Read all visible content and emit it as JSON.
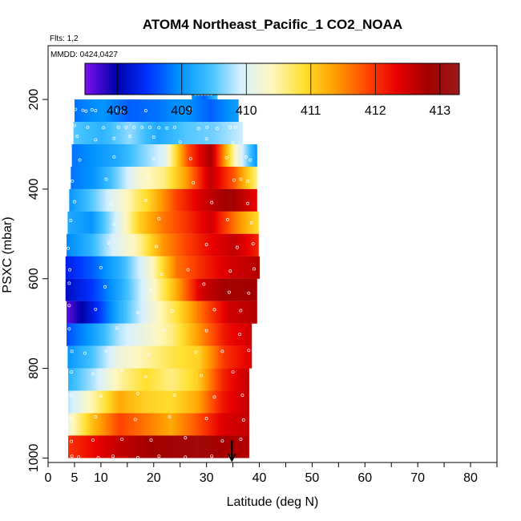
{
  "chart_data": {
    "type": "heatmap",
    "title": "ATOM4 Northeast_Pacific_1 CO2_NOAA",
    "flights_note": "Flts: 1,2",
    "dates_note": "MMDD: 0424,0427",
    "xlabel": "Latitude (deg N)",
    "ylabel": "PSXC (mbar)",
    "xlim": [
      0,
      85
    ],
    "ylim": [
      1010,
      80
    ],
    "x_ticks": [
      0,
      5,
      10,
      20,
      30,
      40,
      50,
      60,
      70,
      80
    ],
    "y_ticks": [
      200,
      400,
      600,
      800,
      1000
    ],
    "colorbar": {
      "range": [
        407.5,
        413.3
      ],
      "ticks": [
        408,
        409,
        410,
        411,
        412,
        413
      ],
      "stops": [
        "#7b10ee",
        "#0000aa",
        "#0030ff",
        "#0090ff",
        "#40c0ff",
        "#d6f0ff",
        "#fff7c0",
        "#ffe030",
        "#ffa000",
        "#ff4a00",
        "#e80000",
        "#a30000",
        "#9a1a1a"
      ]
    },
    "bin_pressure_mbar": 50,
    "bands": [
      {
        "p": 187,
        "lat": [
          27.2,
          32.0
        ],
        "v": [
          409.0,
          408.7,
          409.4
        ]
      },
      {
        "p": 225,
        "lat": [
          5.0,
          36.0
        ],
        "v": [
          408.8,
          409.0,
          408.7,
          408.8,
          409.0,
          408.7,
          409.1
        ]
      },
      {
        "p": 275,
        "lat": [
          4.8,
          36.8
        ],
        "v": [
          409.5,
          409.3,
          409.7,
          409.2,
          409.5,
          409.6,
          409.9
        ]
      },
      {
        "p": 325,
        "lat": [
          4.5,
          39.5
        ],
        "v": [
          408.8,
          409.0,
          409.2,
          409.6,
          410.0,
          411.8,
          412.8,
          410.5,
          409.0
        ]
      },
      {
        "p": 375,
        "lat": [
          4.3,
          39.5
        ],
        "v": [
          408.8,
          409.0,
          409.6,
          410.3,
          410.6,
          411.4,
          412.6,
          411.8,
          410.6
        ]
      },
      {
        "p": 425,
        "lat": [
          4.0,
          39.5
        ],
        "v": [
          409.0,
          409.6,
          410.3,
          411.0,
          411.9,
          412.5,
          412.9,
          412.3
        ]
      },
      {
        "p": 475,
        "lat": [
          3.7,
          39.8
        ],
        "v": [
          409.2,
          409.0,
          409.9,
          411.0,
          411.6,
          412.0,
          412.5,
          411.6,
          410.9
        ]
      },
      {
        "p": 525,
        "lat": [
          3.5,
          39.8
        ],
        "v": [
          408.9,
          409.3,
          410.0,
          410.5,
          411.4,
          411.9,
          412.3,
          412.6,
          412.1
        ]
      },
      {
        "p": 575,
        "lat": [
          3.3,
          40.0
        ],
        "v": [
          408.3,
          408.7,
          409.3,
          410.2,
          411.6,
          412.1,
          412.5,
          412.7
        ]
      },
      {
        "p": 625,
        "lat": [
          3.3,
          39.5
        ],
        "v": [
          408.1,
          408.5,
          409.2,
          410.1,
          411.2,
          412.5,
          412.9,
          412.8
        ]
      },
      {
        "p": 675,
        "lat": [
          3.5,
          39.5
        ],
        "v": [
          407.6,
          408.3,
          409.3,
          410.1,
          410.8,
          411.7,
          412.5,
          412.7
        ]
      },
      {
        "p": 725,
        "lat": [
          3.5,
          38.5
        ],
        "v": [
          408.6,
          409.1,
          409.8,
          410.2,
          410.6,
          411.4,
          412.2,
          412.5
        ]
      },
      {
        "p": 775,
        "lat": [
          3.7,
          38.5
        ],
        "v": [
          409.0,
          409.5,
          410.2,
          410.5,
          410.8,
          411.0,
          412.0,
          412.4
        ]
      },
      {
        "p": 825,
        "lat": [
          3.8,
          38.0
        ],
        "v": [
          409.3,
          409.8,
          410.5,
          410.9,
          410.6,
          411.0,
          412.1,
          412.6
        ]
      },
      {
        "p": 875,
        "lat": [
          3.8,
          38.0
        ],
        "v": [
          409.8,
          410.5,
          411.3,
          411.0,
          410.9,
          411.3,
          412.2,
          412.6
        ]
      },
      {
        "p": 925,
        "lat": [
          3.8,
          38.0
        ],
        "v": [
          410.2,
          411.2,
          411.9,
          411.6,
          411.3,
          411.8,
          412.4,
          412.6
        ]
      },
      {
        "p": 975,
        "lat": [
          3.8,
          38.0
        ],
        "v": [
          412.0,
          412.3,
          412.6,
          412.8,
          412.9,
          413.0,
          412.8,
          412.7
        ]
      }
    ],
    "marker": {
      "lat": 34.8,
      "p": 1000
    },
    "sample_points": [
      [
        27.9,
        188
      ],
      [
        28.5,
        188
      ],
      [
        29.1,
        188
      ],
      [
        29.7,
        188
      ],
      [
        30.3,
        188
      ],
      [
        30.9,
        188
      ],
      [
        5.2,
        222
      ],
      [
        6.6,
        224
      ],
      [
        7.2,
        226
      ],
      [
        8.3,
        223
      ],
      [
        9.0,
        225
      ],
      [
        12.8,
        224
      ],
      [
        14.0,
        227
      ],
      [
        18.5,
        225
      ],
      [
        27.0,
        222
      ],
      [
        5.0,
        258
      ],
      [
        7.5,
        262
      ],
      [
        10.5,
        263
      ],
      [
        13.3,
        262
      ],
      [
        14.8,
        262
      ],
      [
        16.3,
        262
      ],
      [
        17.8,
        262
      ],
      [
        19.3,
        262
      ],
      [
        21.0,
        263
      ],
      [
        22.5,
        264
      ],
      [
        24.0,
        262
      ],
      [
        28.5,
        265
      ],
      [
        30.1,
        262
      ],
      [
        32.0,
        265
      ],
      [
        34.5,
        262
      ],
      [
        35.5,
        262
      ],
      [
        5.5,
        282
      ],
      [
        9.0,
        290
      ],
      [
        12.5,
        287
      ],
      [
        15.5,
        282
      ],
      [
        20.0,
        284
      ],
      [
        25.0,
        295
      ],
      [
        30.0,
        288
      ],
      [
        35.0,
        296
      ],
      [
        6.0,
        335
      ],
      [
        12.5,
        328
      ],
      [
        20.0,
        333
      ],
      [
        27.0,
        332
      ],
      [
        33.8,
        330
      ],
      [
        37.5,
        328
      ],
      [
        38.3,
        335
      ],
      [
        4.6,
        382
      ],
      [
        11.0,
        378
      ],
      [
        19.0,
        377
      ],
      [
        27.5,
        386
      ],
      [
        35.2,
        380
      ],
      [
        36.5,
        378
      ],
      [
        37.8,
        382
      ],
      [
        5.0,
        428
      ],
      [
        12.0,
        434
      ],
      [
        18.5,
        425
      ],
      [
        31.0,
        430
      ],
      [
        37.8,
        432
      ],
      [
        4.3,
        470
      ],
      [
        12.5,
        478
      ],
      [
        21.0,
        466
      ],
      [
        34.0,
        468
      ],
      [
        38.5,
        475
      ],
      [
        3.8,
        532
      ],
      [
        11.5,
        520
      ],
      [
        20.5,
        528
      ],
      [
        30.0,
        524
      ],
      [
        35.8,
        530
      ],
      [
        38.8,
        522
      ],
      [
        4.1,
        580
      ],
      [
        10.0,
        575
      ],
      [
        21.5,
        590
      ],
      [
        26.5,
        580
      ],
      [
        34.5,
        583
      ],
      [
        39.0,
        578
      ],
      [
        4.0,
        610
      ],
      [
        10.8,
        618
      ],
      [
        19.5,
        625
      ],
      [
        29.5,
        612
      ],
      [
        34.3,
        630
      ],
      [
        38.0,
        632
      ],
      [
        4.0,
        660
      ],
      [
        9.0,
        668
      ],
      [
        17.0,
        676
      ],
      [
        23.5,
        672
      ],
      [
        31.5,
        669
      ],
      [
        36.5,
        671
      ],
      [
        4.0,
        712
      ],
      [
        13.0,
        710
      ],
      [
        22.0,
        716
      ],
      [
        30.0,
        716
      ],
      [
        36.3,
        724
      ],
      [
        4.5,
        762
      ],
      [
        7.0,
        766
      ],
      [
        11.0,
        762
      ],
      [
        19.0,
        770
      ],
      [
        28.0,
        764
      ],
      [
        33.0,
        762
      ],
      [
        38.0,
        760
      ],
      [
        4.4,
        808
      ],
      [
        8.5,
        812
      ],
      [
        14.0,
        805
      ],
      [
        18.5,
        818
      ],
      [
        29.0,
        816
      ],
      [
        35.0,
        808
      ],
      [
        4.3,
        860
      ],
      [
        10.0,
        862
      ],
      [
        17.0,
        856
      ],
      [
        24.0,
        860
      ],
      [
        31.5,
        864
      ],
      [
        36.8,
        860
      ],
      [
        4.3,
        912
      ],
      [
        9.0,
        908
      ],
      [
        16.5,
        914
      ],
      [
        23.0,
        908
      ],
      [
        30.0,
        912
      ],
      [
        37.0,
        915
      ],
      [
        4.4,
        963
      ],
      [
        8.5,
        960
      ],
      [
        14.0,
        958
      ],
      [
        19.5,
        960
      ],
      [
        26.0,
        955
      ],
      [
        33.0,
        962
      ],
      [
        36.5,
        958
      ],
      [
        4.5,
        996
      ],
      [
        5.8,
        998
      ],
      [
        9.5,
        999
      ],
      [
        12.3,
        996
      ],
      [
        17.0,
        999
      ],
      [
        21.0,
        996
      ],
      [
        26.0,
        998
      ],
      [
        31.0,
        996
      ],
      [
        34.5,
        999
      ]
    ]
  }
}
